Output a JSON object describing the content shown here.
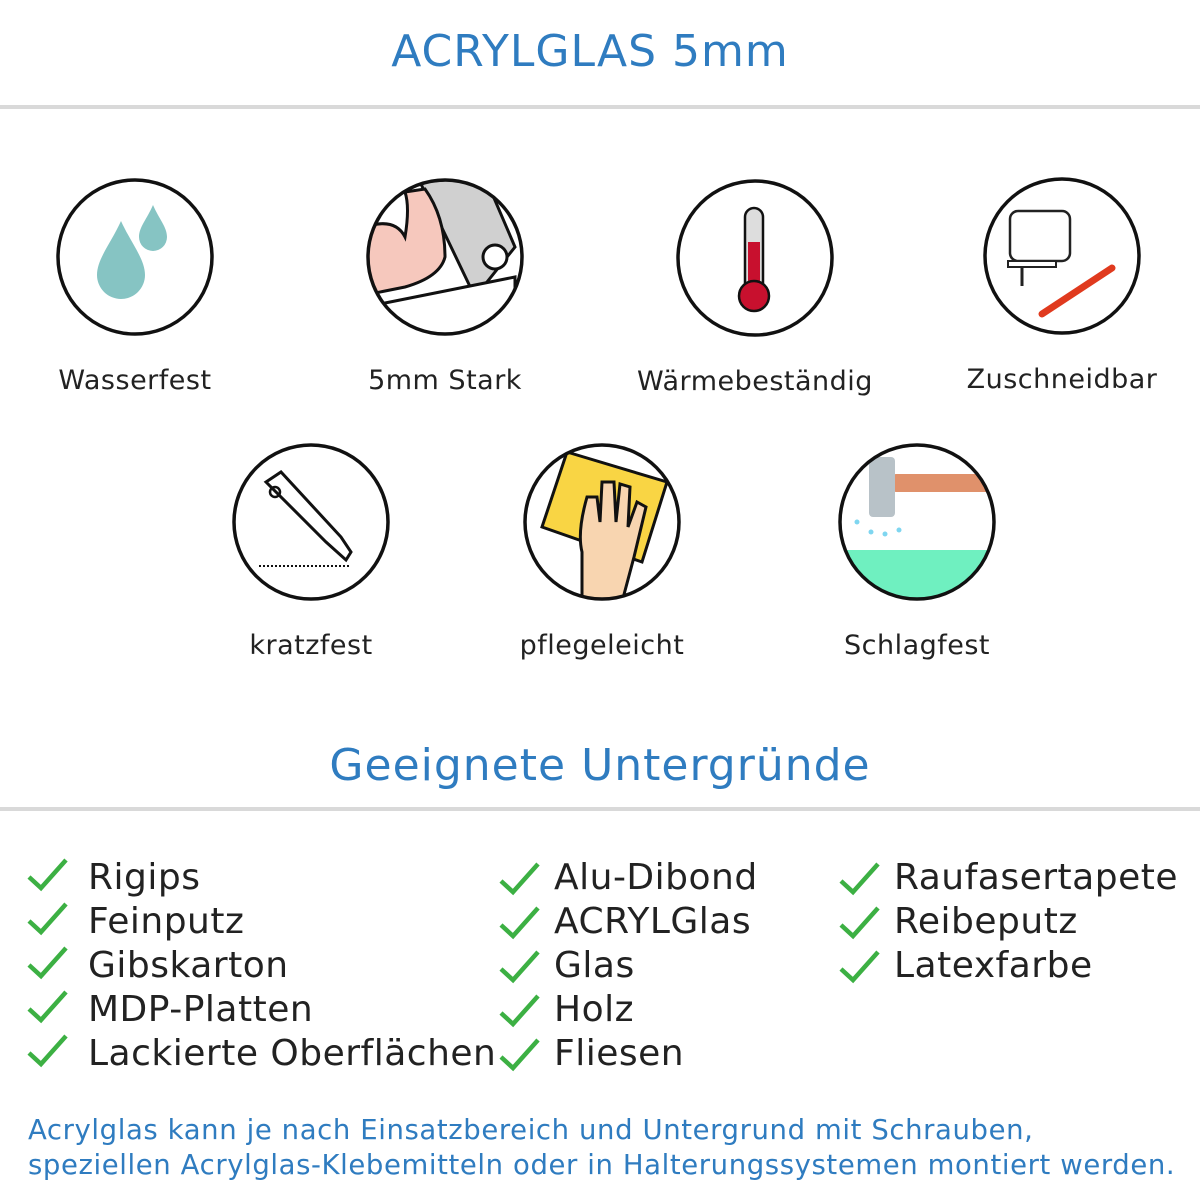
{
  "header": {
    "title": "ACRYLGLAS 5mm"
  },
  "features": [
    {
      "label": "Wasserfest",
      "icon": "water-drops-icon"
    },
    {
      "label": "5mm Stark",
      "icon": "strong-arm-icon"
    },
    {
      "label": "Wärmebeständig",
      "icon": "thermometer-icon"
    },
    {
      "label": "Zuschneidbar",
      "icon": "jigsaw-knife-icon"
    },
    {
      "label": "kratzfest",
      "icon": "cutter-knife-icon"
    },
    {
      "label": "pflegeleicht",
      "icon": "cleaning-hand-icon"
    },
    {
      "label": "Schlagfest",
      "icon": "hammer-icon"
    }
  ],
  "surfaces": {
    "title": "Geeignete Untergründe",
    "columns": [
      [
        "Rigips",
        "Feinputz",
        "Gibskarton",
        "MDP-Platten",
        "Lackierte Oberflächen"
      ],
      [
        "Alu-Dibond",
        "ACRYLGlas",
        "Glas",
        "Holz",
        "Fliesen"
      ],
      [
        "Raufasertapete",
        "Reibeputz",
        "Latexfarbe"
      ]
    ]
  },
  "footer": {
    "line1": "Acrylglas kann je nach Einsatzbereich und Untergrund mit Schrauben,",
    "line2": "speziellen Acrylglas-Klebemitteln oder in Halterungssystemen montiert werden."
  },
  "colors": {
    "accent": "#2f7cc0",
    "check": "#3cb043",
    "divider": "#d9d9d9"
  }
}
